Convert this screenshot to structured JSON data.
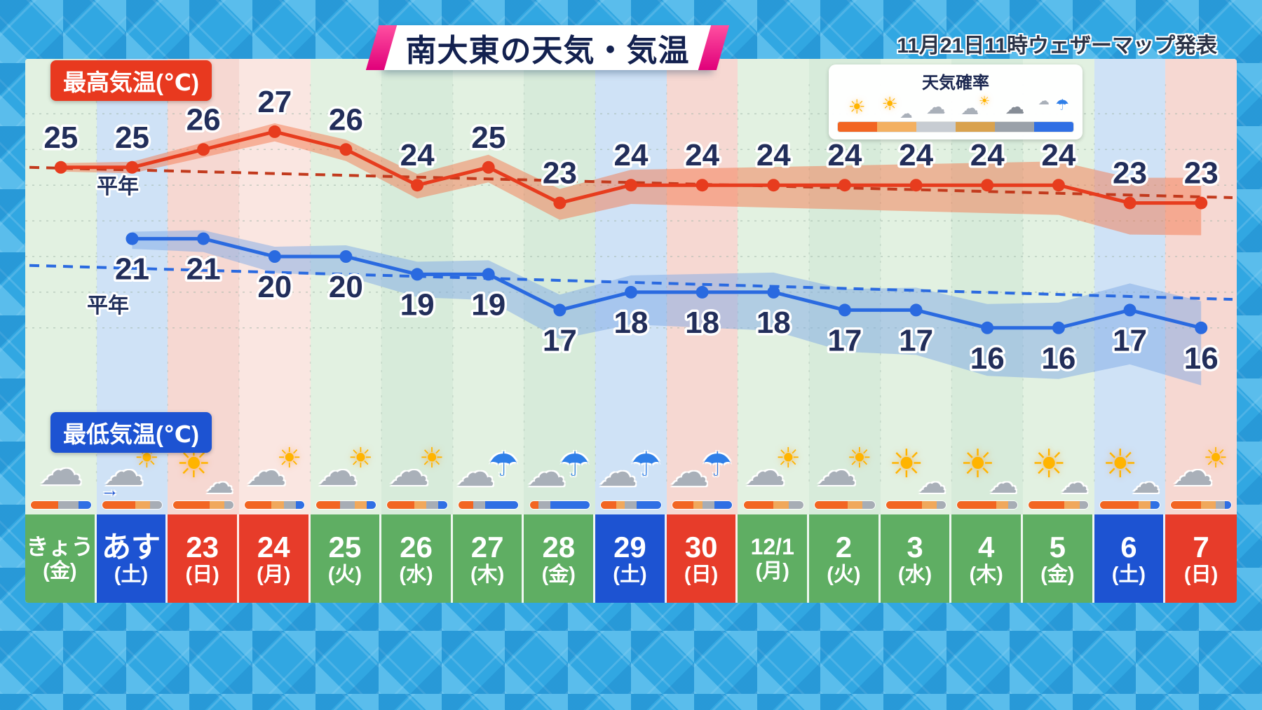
{
  "header": {
    "title": "南大東の天気・気温",
    "issued": "11月21日11時ウェザーマップ発表",
    "high_label": "最高気温(℃)",
    "low_label": "最低気温(℃)",
    "normal_label": "平年"
  },
  "legend": {
    "title": "天気確率",
    "items": [
      {
        "icon": "sun",
        "color": "#f26522"
      },
      {
        "icon": "sun-cloud",
        "color": "#f3b061"
      },
      {
        "icon": "cloud",
        "color": "#c7ccd2"
      },
      {
        "icon": "cloud-sun",
        "color": "#d9a24e"
      },
      {
        "icon": "cloud-dark",
        "color": "#9aa1a9"
      },
      {
        "icon": "rain",
        "color": "#2f6fe4"
      }
    ]
  },
  "chart_data": {
    "type": "line",
    "title": "南大東の天気・気温",
    "categories": [
      "きょう(金)",
      "あす(土)",
      "23(日)",
      "24(月)",
      "25(火)",
      "26(水)",
      "27(木)",
      "28(金)",
      "29(土)",
      "30(日)",
      "12/1(月)",
      "2(火)",
      "3(水)",
      "4(木)",
      "5(金)",
      "6(土)",
      "7(日)"
    ],
    "series": [
      {
        "name": "最高気温(℃)",
        "color": "#e73c1e",
        "values": [
          25,
          25,
          26,
          27,
          26,
          24,
          25,
          23,
          24,
          24,
          24,
          24,
          24,
          24,
          24,
          23,
          23
        ]
      },
      {
        "name": "最低気温(℃)",
        "color": "#2a6ae0",
        "values": [
          null,
          21,
          21,
          20,
          20,
          19,
          19,
          17,
          18,
          18,
          18,
          17,
          17,
          16,
          16,
          17,
          16
        ]
      }
    ],
    "normals": {
      "label": "平年",
      "high_start": 25.0,
      "high_end": 23.3,
      "low_start": 19.5,
      "low_end": 17.6
    },
    "ylim": [
      14.5,
      29
    ],
    "grid": true,
    "legend_position": "top-right"
  },
  "colors": {
    "orange": "#f26522",
    "tan": "#f0a85c",
    "gray": "#a7adb5",
    "blue": "#2f6fe4",
    "stripe_green_a": "#e2f1e1",
    "stripe_green_b": "#d7ebda",
    "stripe_blue": "#cfe2f6",
    "stripe_pink": "#f6d8d2",
    "stripe_pink_b": "#fae6e1",
    "day_green": "#5fae63",
    "day_blue": "#1d53d2",
    "day_red": "#e73c2a"
  },
  "days": [
    {
      "date": "きょう",
      "dow": "(金)",
      "day_type": "green",
      "stripe": "stripe_green_a",
      "icon": "cloud",
      "bar": [
        [
          "orange",
          45
        ],
        [
          "gray",
          35
        ],
        [
          "blue",
          20
        ]
      ]
    },
    {
      "date": "あす",
      "dow": "(土)",
      "day_type": "blue",
      "stripe": "stripe_blue",
      "icon": "cloud-to-sun",
      "bar": [
        [
          "orange",
          55
        ],
        [
          "tan",
          25
        ],
        [
          "gray",
          20
        ]
      ]
    },
    {
      "date": "23",
      "dow": "(日)",
      "day_type": "red",
      "stripe": "stripe_pink",
      "icon": "sun-cloud",
      "bar": [
        [
          "orange",
          60
        ],
        [
          "tan",
          25
        ],
        [
          "gray",
          15
        ]
      ]
    },
    {
      "date": "24",
      "dow": "(月)",
      "day_type": "red",
      "stripe": "stripe_pink_b",
      "icon": "cloud-sun",
      "bar": [
        [
          "orange",
          45
        ],
        [
          "tan",
          20
        ],
        [
          "gray",
          20
        ],
        [
          "blue",
          15
        ]
      ]
    },
    {
      "date": "25",
      "dow": "(火)",
      "day_type": "green",
      "stripe": "stripe_green_a",
      "icon": "cloud-sun",
      "bar": [
        [
          "orange",
          40
        ],
        [
          "gray",
          25
        ],
        [
          "tan",
          20
        ],
        [
          "blue",
          15
        ]
      ]
    },
    {
      "date": "26",
      "dow": "(水)",
      "day_type": "green",
      "stripe": "stripe_green_b",
      "icon": "cloud-sun",
      "bar": [
        [
          "orange",
          45
        ],
        [
          "tan",
          20
        ],
        [
          "gray",
          20
        ],
        [
          "blue",
          15
        ]
      ]
    },
    {
      "date": "27",
      "dow": "(木)",
      "day_type": "green",
      "stripe": "stripe_green_a",
      "icon": "cloud-rain",
      "bar": [
        [
          "orange",
          25
        ],
        [
          "gray",
          20
        ],
        [
          "blue",
          55
        ]
      ]
    },
    {
      "date": "28",
      "dow": "(金)",
      "day_type": "green",
      "stripe": "stripe_green_b",
      "icon": "cloud-rain",
      "bar": [
        [
          "orange",
          15
        ],
        [
          "gray",
          20
        ],
        [
          "blue",
          65
        ]
      ]
    },
    {
      "date": "29",
      "dow": "(土)",
      "day_type": "blue",
      "stripe": "stripe_blue",
      "icon": "cloud-rain",
      "bar": [
        [
          "orange",
          25
        ],
        [
          "tan",
          15
        ],
        [
          "gray",
          20
        ],
        [
          "blue",
          40
        ]
      ]
    },
    {
      "date": "30",
      "dow": "(日)",
      "day_type": "red",
      "stripe": "stripe_pink",
      "icon": "cloud-rain",
      "bar": [
        [
          "orange",
          35
        ],
        [
          "tan",
          15
        ],
        [
          "gray",
          20
        ],
        [
          "blue",
          30
        ]
      ]
    },
    {
      "date": "12/1",
      "dow": "(月)",
      "day_type": "green",
      "stripe": "stripe_green_a",
      "icon": "cloud-sun",
      "bar": [
        [
          "orange",
          50
        ],
        [
          "tan",
          25
        ],
        [
          "gray",
          25
        ]
      ]
    },
    {
      "date": "2",
      "dow": "(火)",
      "day_type": "green",
      "stripe": "stripe_green_b",
      "icon": "cloud-sun",
      "bar": [
        [
          "orange",
          55
        ],
        [
          "tan",
          25
        ],
        [
          "gray",
          20
        ]
      ]
    },
    {
      "date": "3",
      "dow": "(水)",
      "day_type": "green",
      "stripe": "stripe_green_a",
      "icon": "sun-cloud",
      "bar": [
        [
          "orange",
          60
        ],
        [
          "tan",
          25
        ],
        [
          "gray",
          15
        ]
      ]
    },
    {
      "date": "4",
      "dow": "(木)",
      "day_type": "green",
      "stripe": "stripe_green_b",
      "icon": "sun-cloud",
      "bar": [
        [
          "orange",
          65
        ],
        [
          "tan",
          20
        ],
        [
          "gray",
          15
        ]
      ]
    },
    {
      "date": "5",
      "dow": "(金)",
      "day_type": "green",
      "stripe": "stripe_green_a",
      "icon": "sun-cloud",
      "bar": [
        [
          "orange",
          60
        ],
        [
          "tan",
          25
        ],
        [
          "gray",
          15
        ]
      ]
    },
    {
      "date": "6",
      "dow": "(土)",
      "day_type": "blue",
      "stripe": "stripe_blue",
      "icon": "sun-cloud",
      "bar": [
        [
          "orange",
          65
        ],
        [
          "tan",
          20
        ],
        [
          "blue",
          15
        ]
      ]
    },
    {
      "date": "7",
      "dow": "(日)",
      "day_type": "red",
      "stripe": "stripe_pink",
      "icon": "cloud-sun",
      "bar": [
        [
          "orange",
          50
        ],
        [
          "tan",
          25
        ],
        [
          "gray",
          15
        ],
        [
          "blue",
          10
        ]
      ]
    }
  ]
}
